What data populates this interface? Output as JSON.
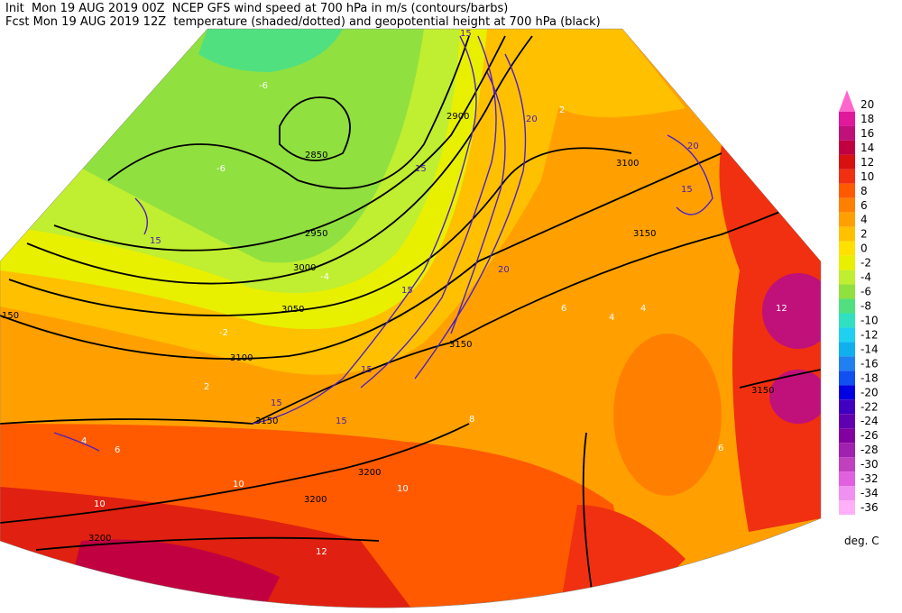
{
  "header": {
    "line1": "Init  Mon 19 AUG 2019 00Z  NCEP GFS wind speed at 700 hPa in m/s (contours/barbs)",
    "line2": "Fcst Mon 19 AUG 2019 12Z  temperature (shaded/dotted) and geopotential height at 700 hPa (black)"
  },
  "colorbar": {
    "unit": "deg. C",
    "levels": [
      {
        "label": 20,
        "color": "#ff66cc"
      },
      {
        "label": 18,
        "color": "#e0189a"
      },
      {
        "label": 16,
        "color": "#c0107a"
      },
      {
        "label": 14,
        "color": "#c00040"
      },
      {
        "label": 12,
        "color": "#d81010"
      },
      {
        "label": 10,
        "color": "#f03010"
      },
      {
        "label": 8,
        "color": "#ff5a00"
      },
      {
        "label": 6,
        "color": "#ff8000"
      },
      {
        "label": 4,
        "color": "#ffa000"
      },
      {
        "label": 2,
        "color": "#ffc000"
      },
      {
        "label": 0,
        "color": "#ffe000"
      },
      {
        "label": -2,
        "color": "#e8f000"
      },
      {
        "label": -4,
        "color": "#c0ee30"
      },
      {
        "label": -6,
        "color": "#90e040"
      },
      {
        "label": -8,
        "color": "#50e080"
      },
      {
        "label": -10,
        "color": "#30e0c0"
      },
      {
        "label": -12,
        "color": "#20d0f0"
      },
      {
        "label": -14,
        "color": "#10b0f0"
      },
      {
        "label": -16,
        "color": "#2080f0"
      },
      {
        "label": -18,
        "color": "#1050f0"
      },
      {
        "label": -20,
        "color": "#0000e0"
      },
      {
        "label": -22,
        "color": "#4000c0"
      },
      {
        "label": -24,
        "color": "#6000b0"
      },
      {
        "label": -26,
        "color": "#8000a0"
      },
      {
        "label": -28,
        "color": "#a020b0"
      },
      {
        "label": -30,
        "color": "#c040c0"
      },
      {
        "label": -32,
        "color": "#e060e0"
      },
      {
        "label": -34,
        "color": "#f090f0"
      },
      {
        "label": -36,
        "color": "#ffb0f8"
      }
    ]
  },
  "height_labels": [
    2850,
    2900,
    2950,
    3000,
    3050,
    3100,
    3150,
    3200,
    150
  ],
  "wind_labels": [
    15,
    20
  ],
  "temperature_labels": [
    -6,
    -4,
    2,
    4,
    6,
    8,
    10,
    12,
    -2
  ]
}
